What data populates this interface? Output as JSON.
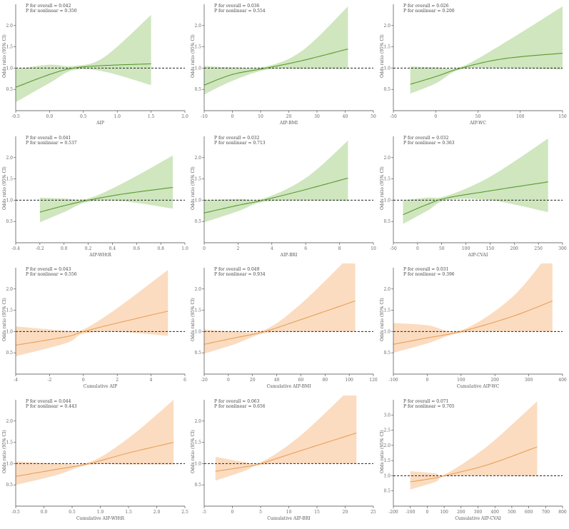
{
  "colors": {
    "green": "#5b9a2e",
    "greenBand": "#cfe6bf",
    "orange": "#e8a05a",
    "orangeBand": "#fbdcc0"
  },
  "chart_data": [
    {
      "type": "line",
      "xlabel": "AIP",
      "ylabel": "Odds ratio (95% CI)",
      "p_overall": "P for overall = 0.042",
      "p_nonlinear": "P for nonlinear = 0.350",
      "xlim": [
        -0.5,
        2.0
      ],
      "ylim": [
        0,
        2.5
      ],
      "xticks": [
        "-0.5",
        "0.0",
        "0.5",
        "1.0",
        "1.5",
        "2.0"
      ],
      "yticks": [
        "0.5",
        "1.0",
        "1.5",
        "2.0"
      ],
      "x": [
        -0.5,
        0.0,
        0.35,
        0.8,
        1.5
      ],
      "y": [
        0.55,
        0.85,
        1.0,
        1.06,
        1.1
      ],
      "lower": [
        0.2,
        0.65,
        0.95,
        0.92,
        0.6
      ],
      "upper": [
        0.98,
        1.08,
        1.05,
        1.25,
        2.25
      ],
      "color": "green"
    },
    {
      "type": "line",
      "xlabel": "AIP-BMI",
      "ylabel": "Odds ratio (95% CI)",
      "p_overall": "P for overall = 0.036",
      "p_nonlinear": "P for nonlinear = 0.554",
      "xlim": [
        -10,
        50
      ],
      "ylim": [
        0,
        2.5
      ],
      "xticks": [
        "-10",
        "0",
        "10",
        "20",
        "30",
        "40",
        "50"
      ],
      "yticks": [
        "0.5",
        "1.0",
        "1.5",
        "2.0"
      ],
      "x": [
        -10,
        0,
        12,
        25,
        41
      ],
      "y": [
        0.6,
        0.85,
        1.0,
        1.18,
        1.45
      ],
      "lower": [
        0.38,
        0.7,
        0.96,
        0.98,
        0.98
      ],
      "upper": [
        1.05,
        1.02,
        1.04,
        1.42,
        2.45
      ],
      "color": "green"
    },
    {
      "type": "line",
      "xlabel": "AIP-WC",
      "ylabel": "Odds ratio (95% CI)",
      "p_overall": "P for overall = 0.026",
      "p_nonlinear": "P for nonlinear = 0.200",
      "xlim": [
        -50,
        150
      ],
      "ylim": [
        0,
        2.5
      ],
      "xticks": [
        "-50",
        "0",
        "50",
        "100",
        "150"
      ],
      "yticks": [
        "0.5",
        "1.0",
        "1.5",
        "2.0"
      ],
      "x": [
        -30,
        0,
        30,
        80,
        150
      ],
      "y": [
        0.62,
        0.8,
        1.0,
        1.22,
        1.35
      ],
      "lower": [
        0.4,
        0.64,
        0.97,
        0.99,
        0.97
      ],
      "upper": [
        1.04,
        1.02,
        1.03,
        1.58,
        2.45
      ],
      "color": "green"
    },
    {
      "type": "line",
      "xlabel": "AIP-WHtR",
      "ylabel": "Odds ratio (95% CI)",
      "p_overall": "P for overall = 0.041",
      "p_nonlinear": "P for nonlinear = 0.537",
      "xlim": [
        -0.4,
        1.0
      ],
      "ylim": [
        0,
        2.5
      ],
      "xticks": [
        "-0.4",
        "-0.2",
        "0.0",
        "0.2",
        "0.4",
        "0.6",
        "0.8",
        "1.0"
      ],
      "yticks": [
        "0.5",
        "1.0",
        "1.5",
        "2.0"
      ],
      "x": [
        -0.2,
        0.0,
        0.2,
        0.5,
        0.9
      ],
      "y": [
        0.72,
        0.87,
        1.0,
        1.15,
        1.3
      ],
      "lower": [
        0.48,
        0.72,
        0.96,
        0.97,
        0.8
      ],
      "upper": [
        1.06,
        1.04,
        1.04,
        1.42,
        2.05
      ],
      "color": "green"
    },
    {
      "type": "line",
      "xlabel": "AIP-BRI",
      "ylabel": "Odds ratio (95% CI)",
      "p_overall": "P for overall = 0.032",
      "p_nonlinear": "P for nonlinear = 0.713",
      "xlim": [
        0,
        10
      ],
      "ylim": [
        0,
        2.5
      ],
      "xticks": [
        "0",
        "2",
        "4",
        "6",
        "8",
        "10"
      ],
      "yticks": [
        "0.5",
        "1.0",
        "1.5",
        "2.0"
      ],
      "x": [
        0,
        2,
        3.5,
        6,
        8.5
      ],
      "y": [
        0.7,
        0.88,
        1.0,
        1.25,
        1.52
      ],
      "lower": [
        0.48,
        0.74,
        0.96,
        0.99,
        0.98
      ],
      "upper": [
        1.0,
        1.03,
        1.04,
        1.52,
        2.4
      ],
      "color": "green"
    },
    {
      "type": "line",
      "xlabel": "AIP-CVAI",
      "ylabel": "Odds ratio (95% CI)",
      "p_overall": "P for overall = 0.032",
      "p_nonlinear": "P for nonlinear = 0.363",
      "xlim": [
        -50,
        300
      ],
      "ylim": [
        0,
        2.5
      ],
      "xticks": [
        "-50",
        "0",
        "50",
        "100",
        "150",
        "200",
        "250",
        "300"
      ],
      "yticks": [
        "0.5",
        "1.0",
        "1.5",
        "2.0"
      ],
      "x": [
        -30,
        20,
        60,
        150,
        270
      ],
      "y": [
        0.66,
        0.9,
        1.05,
        1.22,
        1.43
      ],
      "lower": [
        0.44,
        0.75,
        1.0,
        1.0,
        0.72
      ],
      "upper": [
        1.0,
        1.06,
        1.1,
        1.55,
        2.45
      ],
      "color": "green"
    },
    {
      "type": "line",
      "xlabel": "Cumulative AIP",
      "ylabel": "Odds ratio (95% CI)",
      "p_overall": "P for overall = 0.043",
      "p_nonlinear": "P for nonlinear = 0.556",
      "xlim": [
        -4,
        6
      ],
      "ylim": [
        0,
        2.5
      ],
      "xticks": [
        "-4",
        "-2",
        "0",
        "2",
        "4",
        "6"
      ],
      "yticks": [
        "0.5",
        "1.0",
        "1.5",
        "2.0"
      ],
      "x": [
        -4,
        -1,
        0,
        2,
        5
      ],
      "y": [
        0.68,
        0.88,
        1.0,
        1.2,
        1.48
      ],
      "lower": [
        0.42,
        0.73,
        0.95,
        0.99,
        0.9
      ],
      "upper": [
        1.12,
        1.02,
        1.05,
        1.55,
        2.45
      ],
      "color": "orange"
    },
    {
      "type": "line",
      "xlabel": "Cumulative AIP-BMI",
      "ylabel": "Odds ratio (95% CI)",
      "p_overall": "P for overall = 0.049",
      "p_nonlinear": "P for nonlinear = 0.934",
      "xlim": [
        -20,
        120
      ],
      "ylim": [
        0,
        2.5
      ],
      "xticks": [
        "-20",
        "0",
        "20",
        "40",
        "60",
        "80",
        "100",
        "120"
      ],
      "yticks": [
        "0.5",
        "1.0",
        "1.5",
        "2.0"
      ],
      "x": [
        -20,
        5,
        30,
        60,
        105
      ],
      "y": [
        0.7,
        0.85,
        1.0,
        1.28,
        1.72
      ],
      "lower": [
        0.48,
        0.7,
        0.96,
        0.99,
        1.0
      ],
      "upper": [
        1.05,
        1.0,
        1.04,
        1.65,
        2.9
      ],
      "color": "orange"
    },
    {
      "type": "line",
      "xlabel": "Cumulative AIP-WC",
      "ylabel": "Odds ratio (95% CI)",
      "p_overall": "P for overall = 0.031",
      "p_nonlinear": "P for nonlinear = 0.396",
      "xlim": [
        -100,
        400
      ],
      "ylim": [
        0,
        2.5
      ],
      "xticks": [
        "-100",
        "0",
        "100",
        "200",
        "300",
        "400"
      ],
      "yticks": [
        "0.5",
        "1.0",
        "1.5",
        "2.0"
      ],
      "x": [
        -100,
        0,
        100,
        250,
        370
      ],
      "y": [
        0.7,
        0.85,
        1.0,
        1.35,
        1.72
      ],
      "lower": [
        0.5,
        0.72,
        0.97,
        1.0,
        1.0
      ],
      "upper": [
        1.2,
        1.15,
        1.03,
        1.8,
        2.95
      ],
      "color": "orange"
    },
    {
      "type": "line",
      "xlabel": "Cumulative AIP-WHtR",
      "ylabel": "Odds ratio (95% CI)",
      "p_overall": "P for overall = 0.044",
      "p_nonlinear": "P for nonlinear = 0.443",
      "xlim": [
        -0.5,
        2.5
      ],
      "ylim": [
        0,
        2.5
      ],
      "xticks": [
        "-0.5",
        "0.0",
        "0.5",
        "1.0",
        "1.5",
        "2.0",
        "2.5"
      ],
      "yticks": [
        "0.5",
        "1.0",
        "1.5",
        "2.0"
      ],
      "x": [
        -0.5,
        0.2,
        0.8,
        1.5,
        2.3
      ],
      "y": [
        0.7,
        0.86,
        1.0,
        1.25,
        1.5
      ],
      "lower": [
        0.5,
        0.72,
        0.97,
        0.98,
        0.98
      ],
      "upper": [
        1.05,
        1.01,
        1.03,
        1.6,
        2.5
      ],
      "color": "orange"
    },
    {
      "type": "line",
      "xlabel": "Cumulative AIP-BRI",
      "ylabel": "Odds ratio (95% CI)",
      "p_overall": "P for overall = 0.063",
      "p_nonlinear": "P for nonlinear = 0.656",
      "xlim": [
        -5,
        25
      ],
      "ylim": [
        0,
        2.5
      ],
      "xticks": [
        "-5",
        "0",
        "5",
        "10",
        "15",
        "20",
        "25"
      ],
      "yticks": [
        "0.5",
        "1.0",
        "1.5",
        "2.0"
      ],
      "x": [
        -3,
        2,
        5,
        12,
        22
      ],
      "y": [
        0.82,
        0.92,
        1.0,
        1.3,
        1.72
      ],
      "lower": [
        0.6,
        0.82,
        0.97,
        1.0,
        1.0
      ],
      "upper": [
        1.16,
        1.04,
        1.03,
        1.65,
        2.9
      ],
      "color": "orange"
    },
    {
      "type": "line",
      "xlabel": "Cumulative AIP-CVAI",
      "ylabel": "Odds ratio (95% CI)",
      "p_overall": "P for overall = 0.071",
      "p_nonlinear": "P for nonlinear = 0.705",
      "xlim": [
        -200,
        800
      ],
      "ylim": [
        0,
        3.5
      ],
      "xticks": [
        "-200",
        "-100",
        "0",
        "100",
        "200",
        "300",
        "400",
        "500",
        "600",
        "700",
        "800"
      ],
      "yticks": [
        "0.5",
        "1.0",
        "1.5",
        "2.0",
        "2.5",
        "3.0"
      ],
      "x": [
        -100,
        50,
        100,
        350,
        650
      ],
      "y": [
        0.8,
        0.93,
        1.0,
        1.35,
        1.95
      ],
      "lower": [
        0.55,
        0.8,
        0.97,
        1.0,
        0.98
      ],
      "upper": [
        1.15,
        1.08,
        1.03,
        1.95,
        3.45
      ],
      "color": "orange"
    }
  ]
}
